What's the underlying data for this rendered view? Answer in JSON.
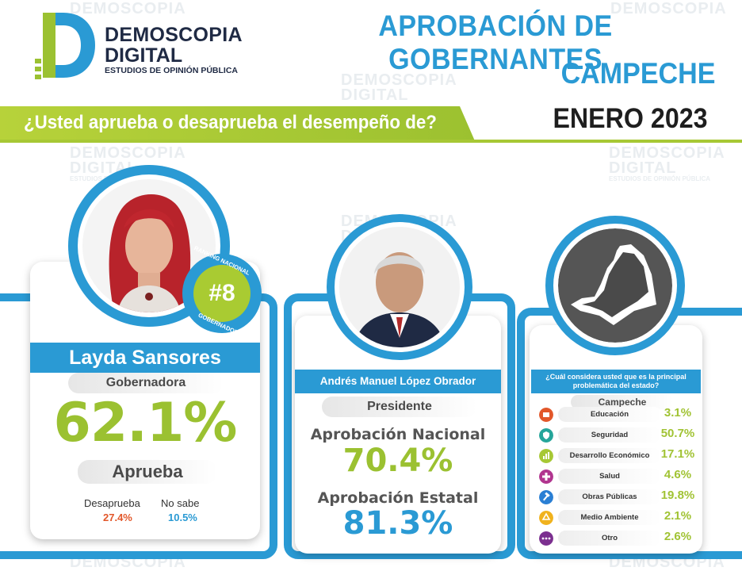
{
  "header": {
    "brand_line1": "DEMOSCOPIA",
    "brand_line2": "DIGITAL",
    "brand_line3": "ESTUDIOS DE OPINIÓN PÚBLICA",
    "title_line1": "APROBACIÓN DE GOBERNANTES",
    "title_line2": "CAMPECHE",
    "date": "ENERO 2023",
    "question": "¿Usted aprueba o desaprueba el desempeño de?"
  },
  "watermark": {
    "line1": "DEMOSCOPIA",
    "line2": "DIGITAL",
    "line3": "ESTUDIOS DE OPINIÓN PÚBLICA"
  },
  "governor": {
    "name": "Layda Sansores",
    "role": "Gobernadora",
    "approval": "62.1%",
    "approval_label": "Aprueba",
    "disapprove_label": "Desaprueba",
    "disapprove_value": "27.4%",
    "nosabe_label": "No sabe",
    "nosabe_value": "10.5%",
    "badge_rank": "#8",
    "badge_top": "RANKING NACIONAL",
    "badge_bottom": "GOBERNADORES"
  },
  "president": {
    "name": "Andrés Manuel López Obrador",
    "role": "Presidente",
    "national_label": "Aprobación Nacional",
    "national_value": "70.4%",
    "state_label": "Aprobación Estatal",
    "state_value": "81.3%"
  },
  "problems": {
    "question": "¿Cuál considera usted que es la principal problemática del estado?",
    "state": "Campeche",
    "items": [
      {
        "label": "Educación",
        "value": "3.1%",
        "icon": "education-icon",
        "color": "#e2572a"
      },
      {
        "label": "Seguridad",
        "value": "50.7%",
        "icon": "shield-icon",
        "color": "#25a59a"
      },
      {
        "label": "Desarrollo Económico",
        "value": "17.1%",
        "icon": "bar-chart-icon",
        "color": "#a7c835"
      },
      {
        "label": "Salud",
        "value": "4.6%",
        "icon": "health-cross-icon",
        "color": "#b1358f"
      },
      {
        "label": "Obras Públicas",
        "value": "19.8%",
        "icon": "hammer-icon",
        "color": "#2a7fd4"
      },
      {
        "label": "Medio Ambiente",
        "value": "2.1%",
        "icon": "recycle-icon",
        "color": "#f0b21d"
      },
      {
        "label": "Otro",
        "value": "2.6%",
        "icon": "dots-icon",
        "color": "#7b2f8f"
      }
    ]
  },
  "colors": {
    "blue": "#2a9ad4",
    "green": "#9bc131",
    "red": "#e2572a"
  }
}
